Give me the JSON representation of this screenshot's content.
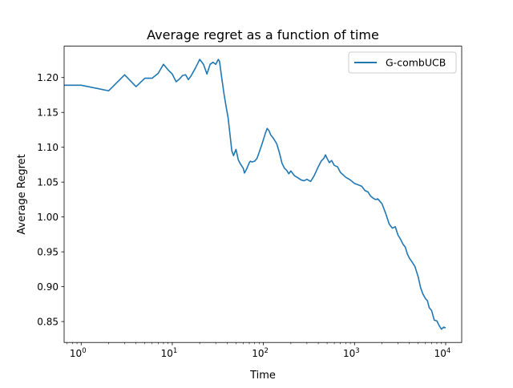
{
  "chart_data": {
    "type": "line",
    "title": "Average regret as a function of time",
    "xlabel": "Time",
    "ylabel": "Average Regret",
    "x_scale": "log",
    "xlim": [
      0.65,
      15000
    ],
    "ylim": [
      0.82,
      1.245
    ],
    "grid": false,
    "legend_position": "top-right",
    "x_ticks": [
      {
        "value": 1,
        "base": "10",
        "exp": "0"
      },
      {
        "value": 10,
        "base": "10",
        "exp": "1"
      },
      {
        "value": 100,
        "base": "10",
        "exp": "2"
      },
      {
        "value": 1000,
        "base": "10",
        "exp": "3"
      },
      {
        "value": 10000,
        "base": "10",
        "exp": "4"
      }
    ],
    "y_ticks": [
      {
        "value": 0.85,
        "label": "0.85"
      },
      {
        "value": 0.9,
        "label": "0.90"
      },
      {
        "value": 0.95,
        "label": "0.95"
      },
      {
        "value": 1.0,
        "label": "1.00"
      },
      {
        "value": 1.05,
        "label": "1.05"
      },
      {
        "value": 1.1,
        "label": "1.10"
      },
      {
        "value": 1.15,
        "label": "1.15"
      },
      {
        "value": 1.2,
        "label": "1.20"
      }
    ],
    "series": [
      {
        "name": "G-combUCB",
        "color": "#1f77b4",
        "x": [
          0.5,
          1,
          2,
          3,
          4,
          5,
          6,
          7,
          8,
          9,
          10,
          11,
          12,
          13,
          14,
          15,
          16,
          18,
          20,
          22,
          24,
          26,
          28,
          30,
          32,
          33,
          35,
          37,
          39,
          41,
          43,
          45,
          47,
          50,
          53,
          56,
          60,
          62,
          65,
          68,
          70,
          72,
          75,
          80,
          85,
          90,
          95,
          100,
          105,
          110,
          115,
          120,
          130,
          140,
          150,
          160,
          170,
          180,
          190,
          200,
          220,
          240,
          260,
          280,
          300,
          330,
          360,
          400,
          430,
          460,
          480,
          500,
          530,
          560,
          600,
          650,
          700,
          800,
          900,
          1000,
          1100,
          1200,
          1300,
          1400,
          1500,
          1600,
          1700,
          1800,
          2000,
          2200,
          2400,
          2600,
          2800,
          3000,
          3200,
          3400,
          3600,
          3800,
          4000,
          4300,
          4600,
          5000,
          5300,
          5600,
          6000,
          6300,
          6600,
          7000,
          7500,
          8000,
          8500,
          9000,
          9500,
          10000
        ],
        "y": [
          1.189,
          1.189,
          1.181,
          1.204,
          1.187,
          1.199,
          1.199,
          1.206,
          1.219,
          1.211,
          1.205,
          1.194,
          1.198,
          1.203,
          1.204,
          1.197,
          1.202,
          1.214,
          1.226,
          1.219,
          1.205,
          1.219,
          1.222,
          1.219,
          1.226,
          1.223,
          1.198,
          1.176,
          1.158,
          1.142,
          1.118,
          1.095,
          1.088,
          1.097,
          1.082,
          1.076,
          1.07,
          1.063,
          1.068,
          1.074,
          1.078,
          1.08,
          1.079,
          1.08,
          1.084,
          1.093,
          1.102,
          1.111,
          1.12,
          1.127,
          1.124,
          1.118,
          1.112,
          1.105,
          1.092,
          1.077,
          1.07,
          1.067,
          1.062,
          1.066,
          1.059,
          1.056,
          1.053,
          1.052,
          1.054,
          1.051,
          1.059,
          1.072,
          1.08,
          1.084,
          1.089,
          1.084,
          1.078,
          1.081,
          1.074,
          1.072,
          1.064,
          1.057,
          1.053,
          1.048,
          1.046,
          1.044,
          1.038,
          1.036,
          1.03,
          1.027,
          1.025,
          1.026,
          1.019,
          1.005,
          0.99,
          0.984,
          0.986,
          0.974,
          0.968,
          0.961,
          0.957,
          0.947,
          0.941,
          0.935,
          0.929,
          0.914,
          0.899,
          0.89,
          0.883,
          0.88,
          0.87,
          0.866,
          0.852,
          0.851,
          0.844,
          0.839,
          0.842,
          0.841
        ]
      }
    ]
  }
}
